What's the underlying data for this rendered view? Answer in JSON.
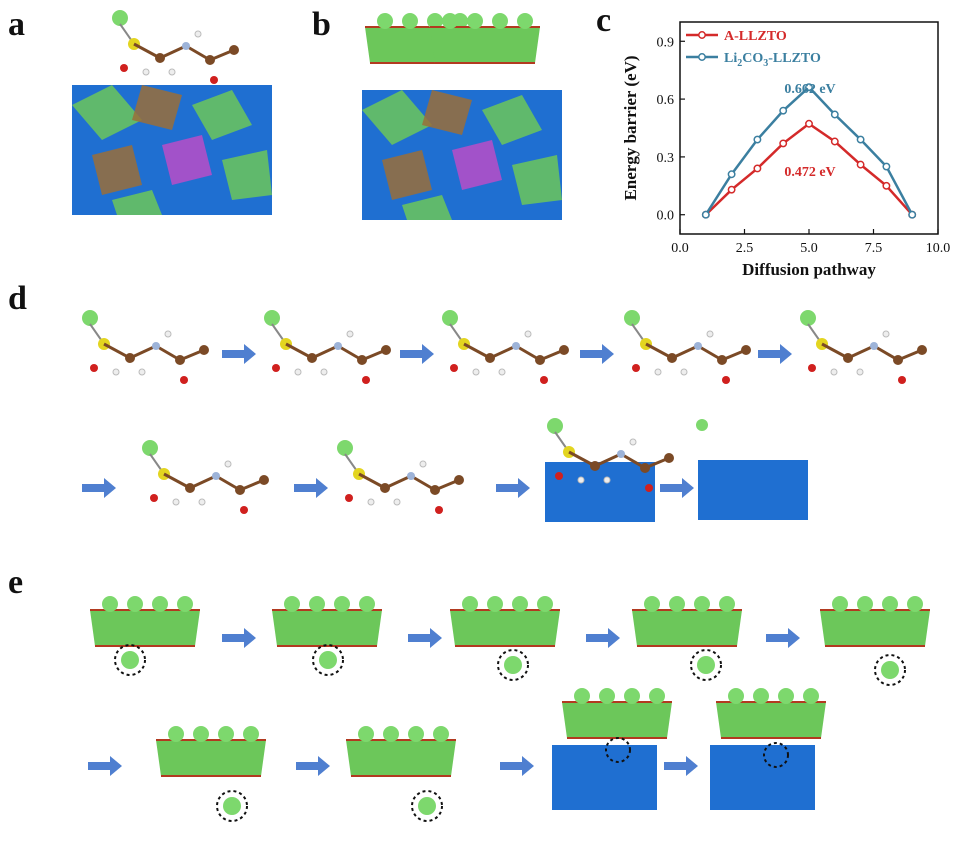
{
  "panel_labels": {
    "a": "a",
    "b": "b",
    "c": "c",
    "d": "d",
    "e": "e"
  },
  "colors": {
    "a_llzto": "#d42a2a",
    "li2co3_llzto": "#3b7fa0",
    "polyhedron_blue": "#1f6fd1",
    "polyhedron_green": "#6cc75a",
    "polyhedron_brown": "#9a6e3a",
    "polyhedron_magenta": "#c34bc7",
    "oxygen_red": "#d0201e",
    "lithium_green": "#78d36a",
    "carbon_brown": "#7b4a26",
    "arrow_blue": "#4f7fd0"
  },
  "chart_data": {
    "type": "line",
    "xlabel": "Diffusion pathway",
    "ylabel": "Energy barrier (eV)",
    "xlim": [
      0.0,
      10.0
    ],
    "ylim": [
      -0.1,
      1.0
    ],
    "xticks": [
      "0.0",
      "2.5",
      "5.0",
      "7.5",
      "10.0"
    ],
    "xtick_values": [
      0.0,
      2.5,
      5.0,
      7.5,
      10.0
    ],
    "yticks": [
      "0.0",
      "0.3",
      "0.6",
      "0.9"
    ],
    "ytick_values": [
      0.0,
      0.3,
      0.6,
      0.9
    ],
    "legend_position": "top-left",
    "series": [
      {
        "name": "A-LLZTO",
        "color": "#d42a2a",
        "x": [
          1,
          2,
          3,
          4,
          5,
          6,
          7,
          8,
          9
        ],
        "y": [
          0.0,
          0.13,
          0.24,
          0.37,
          0.472,
          0.38,
          0.26,
          0.15,
          0.0
        ]
      },
      {
        "name": "Li2CO3-LLZTO",
        "color": "#3b7fa0",
        "x": [
          1,
          2,
          3,
          4,
          5,
          6,
          7,
          8,
          9
        ],
        "y": [
          0.0,
          0.21,
          0.39,
          0.54,
          0.662,
          0.52,
          0.39,
          0.25,
          0.0
        ]
      }
    ],
    "annotations": [
      {
        "text": "0.662 eV",
        "x": 5.0,
        "y": 0.662,
        "color": "#3b7fa0"
      },
      {
        "text": "0.472 eV",
        "x": 5.0,
        "y": 0.472,
        "color": "#d42a2a"
      }
    ]
  }
}
